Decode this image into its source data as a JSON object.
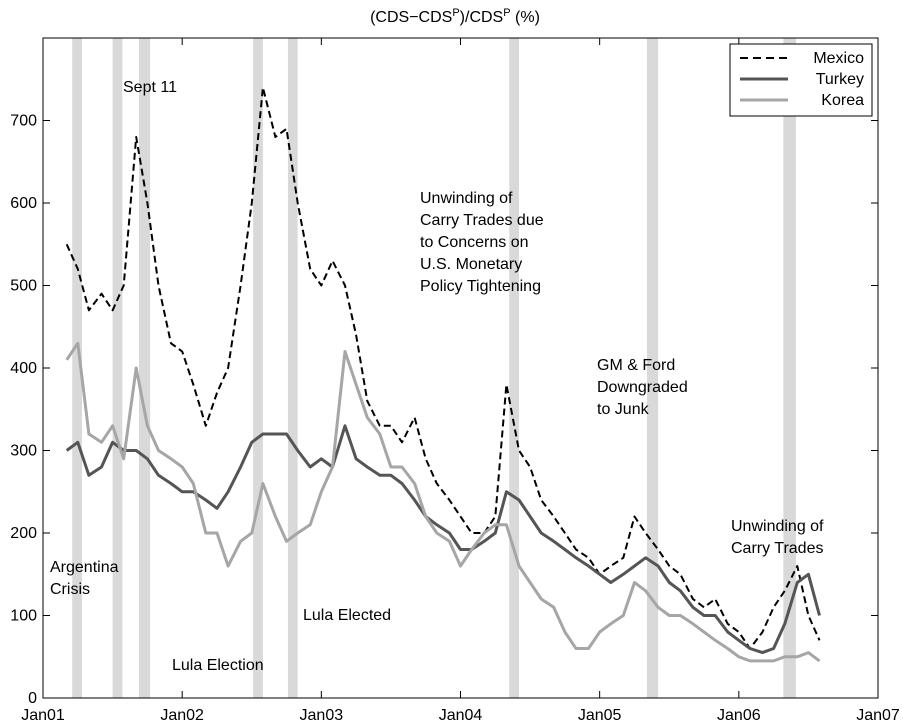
{
  "chart_data": {
    "type": "line",
    "title": [
      "(CDS−CDS",
      "P",
      ")/CDS",
      "P",
      " (%)"
    ],
    "x": [
      2001.17,
      2001.25,
      2001.33,
      2001.42,
      2001.5,
      2001.58,
      2001.67,
      2001.75,
      2001.83,
      2001.92,
      2002.0,
      2002.08,
      2002.17,
      2002.25,
      2002.33,
      2002.42,
      2002.5,
      2002.58,
      2002.67,
      2002.75,
      2002.83,
      2002.92,
      2003.0,
      2003.08,
      2003.17,
      2003.25,
      2003.33,
      2003.42,
      2003.5,
      2003.58,
      2003.67,
      2003.75,
      2003.83,
      2003.92,
      2004.0,
      2004.08,
      2004.17,
      2004.25,
      2004.33,
      2004.42,
      2004.5,
      2004.58,
      2004.67,
      2004.75,
      2004.83,
      2004.92,
      2005.0,
      2005.08,
      2005.17,
      2005.25,
      2005.33,
      2005.42,
      2005.5,
      2005.58,
      2005.67,
      2005.75,
      2005.83,
      2005.92,
      2006.0,
      2006.08,
      2006.17,
      2006.25,
      2006.33,
      2006.42,
      2006.5,
      2006.58
    ],
    "series": [
      {
        "name": "Mexico",
        "color": "#000000",
        "dashed": true,
        "values": [
          550,
          520,
          470,
          490,
          470,
          500,
          680,
          600,
          500,
          430,
          420,
          380,
          330,
          370,
          400,
          500,
          600,
          740,
          680,
          690,
          600,
          520,
          500,
          530,
          500,
          440,
          360,
          330,
          330,
          310,
          340,
          290,
          260,
          240,
          220,
          200,
          200,
          220,
          380,
          300,
          280,
          240,
          220,
          200,
          180,
          170,
          150,
          160,
          170,
          220,
          200,
          180,
          160,
          150,
          120,
          110,
          120,
          90,
          80,
          60,
          80,
          110,
          130,
          160,
          100,
          70
        ]
      },
      {
        "name": "Turkey",
        "color": "#555555",
        "dashed": false,
        "values": [
          300,
          310,
          270,
          280,
          310,
          300,
          300,
          290,
          270,
          260,
          250,
          250,
          240,
          230,
          250,
          280,
          310,
          320,
          320,
          320,
          300,
          280,
          290,
          280,
          330,
          290,
          280,
          270,
          270,
          260,
          240,
          220,
          210,
          200,
          180,
          180,
          190,
          200,
          250,
          240,
          220,
          200,
          190,
          180,
          170,
          160,
          150,
          140,
          150,
          160,
          170,
          160,
          140,
          130,
          110,
          100,
          100,
          80,
          70,
          60,
          55,
          60,
          90,
          140,
          150,
          100
        ]
      },
      {
        "name": "Korea",
        "color": "#a6a6a6",
        "dashed": false,
        "values": [
          410,
          430,
          320,
          310,
          330,
          290,
          400,
          330,
          300,
          290,
          280,
          260,
          200,
          200,
          160,
          190,
          200,
          260,
          220,
          190,
          200,
          210,
          250,
          280,
          420,
          380,
          340,
          320,
          280,
          280,
          260,
          220,
          200,
          190,
          160,
          180,
          200,
          210,
          210,
          160,
          140,
          120,
          110,
          80,
          60,
          60,
          80,
          90,
          100,
          140,
          130,
          110,
          100,
          100,
          90,
          80,
          70,
          60,
          50,
          45,
          45,
          45,
          50,
          50,
          55,
          45
        ]
      }
    ],
    "shaded_periods": [
      [
        2001.21,
        2001.28
      ],
      [
        2001.5,
        2001.57
      ],
      [
        2001.69,
        2001.77
      ],
      [
        2002.51,
        2002.58
      ],
      [
        2002.76,
        2002.83
      ],
      [
        2004.35,
        2004.42
      ],
      [
        2005.34,
        2005.42
      ],
      [
        2006.32,
        2006.41
      ]
    ],
    "annotations": [
      [
        "Sept 11"
      ],
      [
        "Argentina",
        "Crisis"
      ],
      [
        "Lula Election"
      ],
      [
        "Lula Elected"
      ],
      [
        "Unwinding of",
        "Carry Trades due",
        "to Concerns on",
        "U.S. Monetary",
        "Policy Tightening"
      ],
      [
        "GM & Ford",
        "Downgraded",
        "to Junk"
      ],
      [
        "Unwinding of",
        "Carry Trades"
      ]
    ],
    "xlim": [
      2001,
      2007
    ],
    "xticks": [
      {
        "value": 2001,
        "label": "Jan01"
      },
      {
        "value": 2002,
        "label": "Jan02"
      },
      {
        "value": 2003,
        "label": "Jan03"
      },
      {
        "value": 2004,
        "label": "Jan04"
      },
      {
        "value": 2005,
        "label": "Jan05"
      },
      {
        "value": 2006,
        "label": "Jan06"
      },
      {
        "value": 2007,
        "label": "Jan07"
      }
    ],
    "ylim": [
      0,
      800
    ],
    "yticks": [
      0,
      100,
      200,
      300,
      400,
      500,
      600,
      700
    ],
    "legend": "upper right"
  }
}
